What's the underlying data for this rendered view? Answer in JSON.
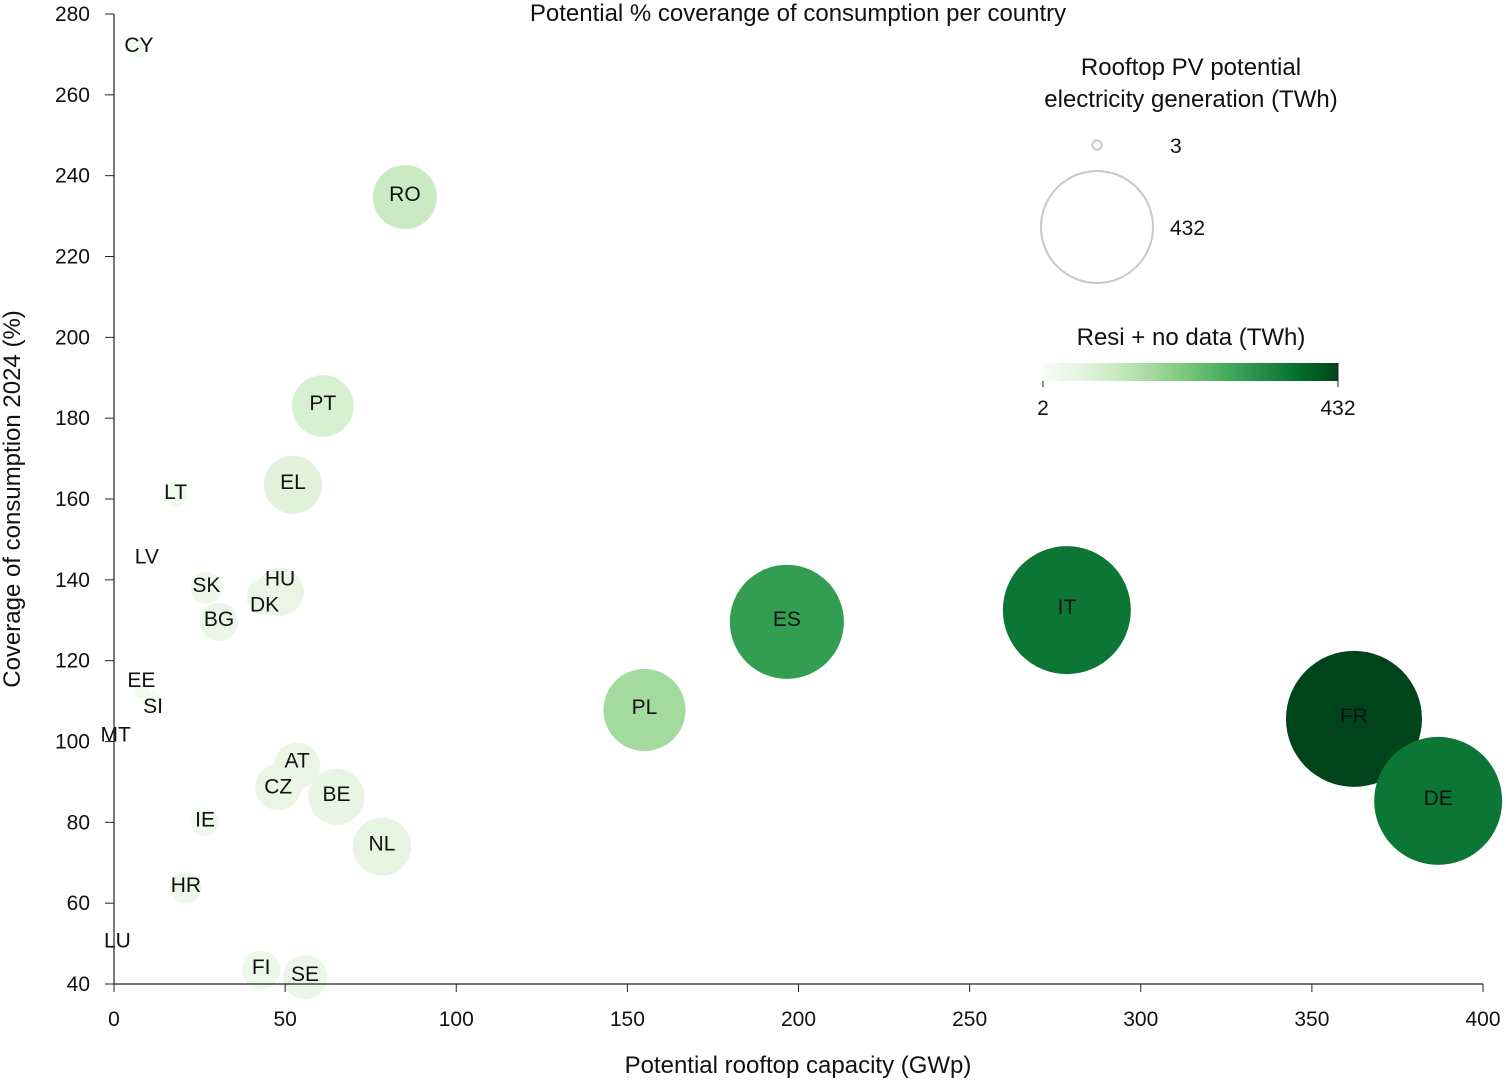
{
  "chart_data": {
    "type": "scatter",
    "title": "Potential % coverange of consumption per country",
    "xlabel": "Potential rooftop capacity (GWp)",
    "ylabel": "Coverage of consumption 2024 (%)",
    "xlim": [
      0,
      400
    ],
    "ylim": [
      40,
      280
    ],
    "xticks": [
      0,
      50,
      100,
      150,
      200,
      250,
      300,
      350,
      400
    ],
    "yticks": [
      40,
      60,
      80,
      100,
      120,
      140,
      160,
      180,
      200,
      220,
      240,
      260,
      280
    ],
    "grid": false,
    "size_legend": {
      "title_line1": "Rooftop PV potential",
      "title_line2": "electricity generation (TWh)",
      "values": [
        3,
        432
      ],
      "labels": [
        "3",
        "432"
      ]
    },
    "color_legend": {
      "title": "Resi + no data (TWh)",
      "min": 2,
      "max": 432,
      "min_label": "2",
      "max_label": "432"
    },
    "points": [
      {
        "label": "CY",
        "x": 7.3,
        "y": 271.6,
        "size": 14,
        "color_value": 15
      },
      {
        "label": "RO",
        "x": 85,
        "y": 234.7,
        "size": 141,
        "color_value": 105
      },
      {
        "label": "PT",
        "x": 61,
        "y": 183,
        "size": 132,
        "color_value": 80
      },
      {
        "label": "EL",
        "x": 52.3,
        "y": 163.5,
        "size": 116,
        "color_value": 65
      },
      {
        "label": "LT",
        "x": 18,
        "y": 161,
        "size": 20,
        "color_value": 20
      },
      {
        "label": "LV",
        "x": 9.6,
        "y": 145,
        "size": 2,
        "color_value": 10
      },
      {
        "label": "SK",
        "x": 27,
        "y": 138,
        "size": 35,
        "color_value": 35
      },
      {
        "label": "HU",
        "x": 48.5,
        "y": 137,
        "size": 79,
        "color_value": 45
      },
      {
        "label": "DK",
        "x": 44,
        "y": 135.8,
        "size": 45,
        "color_value": 40
      },
      {
        "label": "BG",
        "x": 30.7,
        "y": 129.6,
        "size": 50,
        "color_value": 40
      },
      {
        "label": "EE",
        "x": 8,
        "y": 112.7,
        "size": 9,
        "color_value": 15
      },
      {
        "label": "SI",
        "x": 11.4,
        "y": 109.8,
        "size": 14,
        "color_value": 15
      },
      {
        "label": "MT",
        "x": 0.5,
        "y": 101,
        "size": 1,
        "color_value": 5
      },
      {
        "label": "AT",
        "x": 53.5,
        "y": 94,
        "size": 73,
        "color_value": 45
      },
      {
        "label": "CZ",
        "x": 48,
        "y": 88.7,
        "size": 73,
        "color_value": 45
      },
      {
        "label": "BE",
        "x": 65,
        "y": 86.3,
        "size": 108,
        "color_value": 50
      },
      {
        "label": "IE",
        "x": 26.6,
        "y": 80,
        "size": 27,
        "color_value": 25
      },
      {
        "label": "NL",
        "x": 78.3,
        "y": 74,
        "size": 116,
        "color_value": 55
      },
      {
        "label": "HR",
        "x": 21,
        "y": 63.8,
        "size": 35,
        "color_value": 30
      },
      {
        "label": "LU",
        "x": 1,
        "y": 50,
        "size": 2,
        "color_value": 5
      },
      {
        "label": "FI",
        "x": 43,
        "y": 43.5,
        "size": 50,
        "color_value": 35
      },
      {
        "label": "SE",
        "x": 55.8,
        "y": 41.7,
        "size": 67,
        "color_value": 40
      },
      {
        "label": "PL",
        "x": 155,
        "y": 107.8,
        "size": 232,
        "color_value": 160
      },
      {
        "label": "ES",
        "x": 196.6,
        "y": 129.6,
        "size": 448,
        "color_value": 295
      },
      {
        "label": "IT",
        "x": 278.4,
        "y": 132.5,
        "size": 564,
        "color_value": 360
      },
      {
        "label": "FR",
        "x": 362.3,
        "y": 105.6,
        "size": 637,
        "color_value": 432
      },
      {
        "label": "DE",
        "x": 386.9,
        "y": 85.3,
        "size": 564,
        "color_value": 360
      }
    ]
  }
}
